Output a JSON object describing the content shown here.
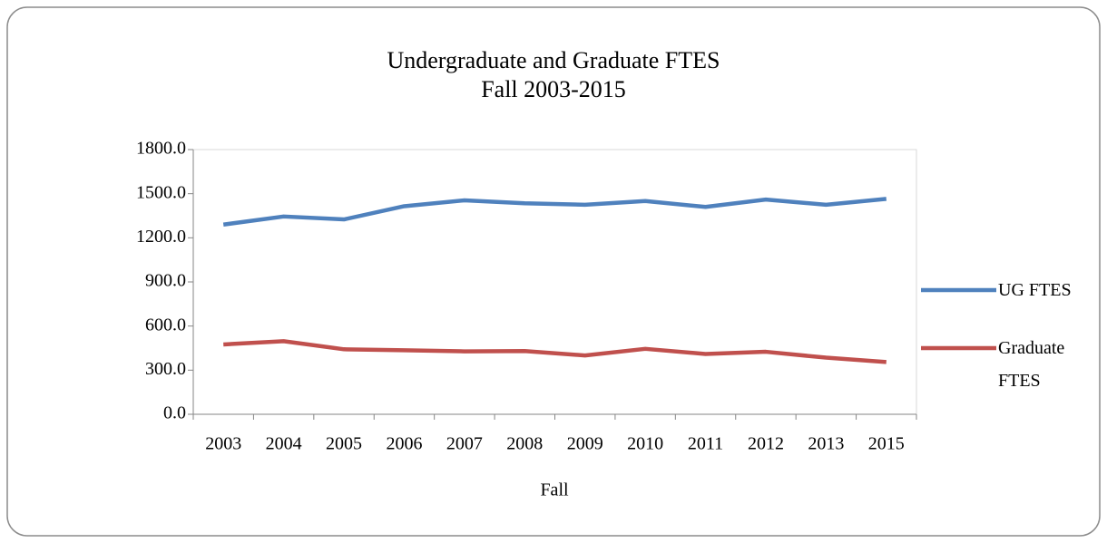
{
  "chart_data": {
    "type": "line",
    "title": "Undergraduate and Graduate FTES",
    "subtitle": "Fall 2003-2015",
    "x_label": "Fall",
    "categories": [
      "2003",
      "2004",
      "2005",
      "2006",
      "2007",
      "2008",
      "2009",
      "2010",
      "2011",
      "2012",
      "2013",
      "2015"
    ],
    "series": [
      {
        "name": "UG FTES",
        "color": "#4f81bd",
        "values": [
          1290,
          1345,
          1325,
          1415,
          1455,
          1435,
          1425,
          1450,
          1410,
          1460,
          1425,
          1465
        ]
      },
      {
        "name": "Graduate FTES",
        "color": "#c0504d",
        "values": [
          475,
          497,
          442,
          435,
          428,
          430,
          400,
          445,
          410,
          425,
          385,
          355
        ]
      }
    ],
    "ylim": [
      0,
      1800
    ],
    "yticks": [
      {
        "value": 0,
        "label": "0.0"
      },
      {
        "value": 300,
        "label": "300.0"
      },
      {
        "value": 600,
        "label": "600.0"
      },
      {
        "value": 900,
        "label": "900.0"
      },
      {
        "value": 1200,
        "label": "1200.0"
      },
      {
        "value": 1500,
        "label": "1500.0"
      },
      {
        "value": 1800,
        "label": "1800.0"
      }
    ],
    "grid": false,
    "legend": "right"
  }
}
